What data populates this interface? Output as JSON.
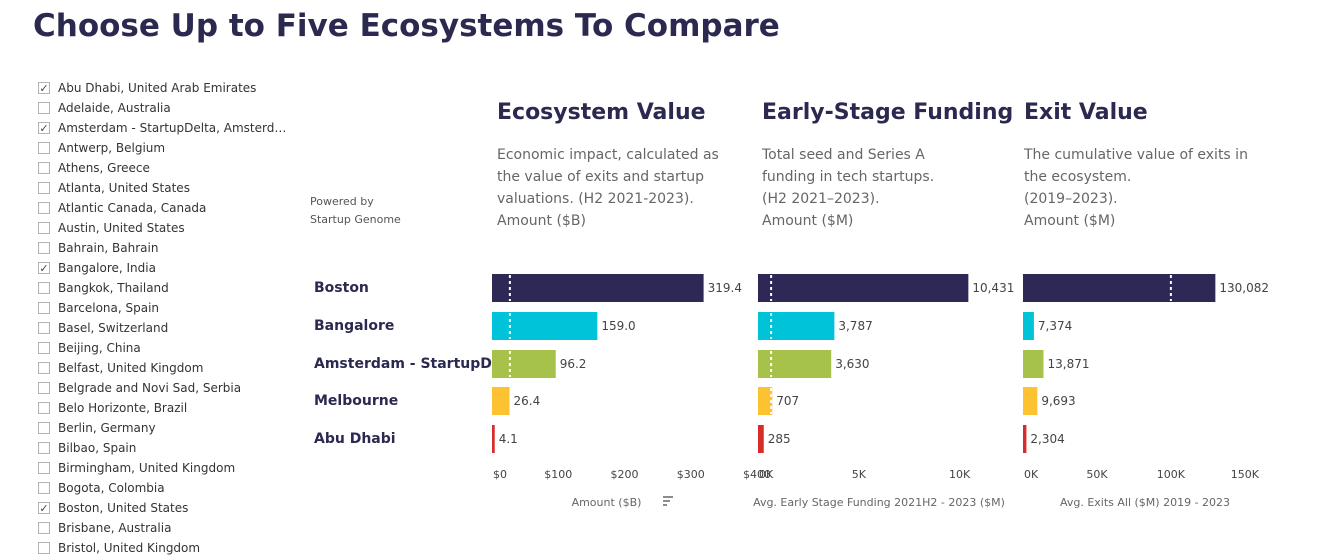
{
  "page": {
    "title": "Choose Up to Five Ecosystems To Compare",
    "powered_by": "Powered by",
    "powered_org": "Startup Genome"
  },
  "checklist": [
    {
      "label": "Abu Dhabi, United Arab Emirates",
      "checked": true
    },
    {
      "label": "Adelaide, Australia",
      "checked": false
    },
    {
      "label": "Amsterdam - StartupDelta, Amsterda...",
      "checked": true
    },
    {
      "label": "Antwerp, Belgium",
      "checked": false
    },
    {
      "label": "Athens, Greece",
      "checked": false
    },
    {
      "label": "Atlanta, United States",
      "checked": false
    },
    {
      "label": "Atlantic Canada, Canada",
      "checked": false
    },
    {
      "label": "Austin, United States",
      "checked": false
    },
    {
      "label": "Bahrain, Bahrain",
      "checked": false
    },
    {
      "label": "Bangalore, India",
      "checked": true
    },
    {
      "label": "Bangkok, Thailand",
      "checked": false
    },
    {
      "label": "Barcelona, Spain",
      "checked": false
    },
    {
      "label": "Basel, Switzerland",
      "checked": false
    },
    {
      "label": "Beijing, China",
      "checked": false
    },
    {
      "label": "Belfast, United Kingdom",
      "checked": false
    },
    {
      "label": "Belgrade and Novi Sad, Serbia",
      "checked": false
    },
    {
      "label": "Belo Horizonte, Brazil",
      "checked": false
    },
    {
      "label": "Berlin, Germany",
      "checked": false
    },
    {
      "label": "Bilbao, Spain",
      "checked": false
    },
    {
      "label": "Birmingham, United Kingdom",
      "checked": false
    },
    {
      "label": "Bogota, Colombia",
      "checked": false
    },
    {
      "label": "Boston, United States",
      "checked": true
    },
    {
      "label": "Brisbane, Australia",
      "checked": false
    },
    {
      "label": "Bristol, United Kingdom",
      "checked": false
    }
  ],
  "chart_data": {
    "type": "bar",
    "orientation": "horizontal",
    "categories": [
      "Boston",
      "Bangalore",
      "Amsterdam - StartupDe..",
      "Melbourne",
      "Abu Dhabi"
    ],
    "colors": [
      "#2e2856",
      "#00c2d8",
      "#a6c24a",
      "#fdc231",
      "#d62c2c"
    ],
    "panels": [
      {
        "title": "Ecosystem Value",
        "description": [
          "Economic impact, calculated as",
          "the value of exits and startup",
          "valuations. (H2 2021-2023).",
          "Amount ($B)"
        ],
        "xlabel": "Amount ($B)",
        "values": [
          319.4,
          159.0,
          96.2,
          26.4,
          4.1
        ],
        "value_labels": [
          "319.4",
          "159.0",
          "96.2",
          "26.4",
          "4.1"
        ],
        "xlim": [
          0,
          400
        ],
        "ticks": [
          0,
          100,
          200,
          300,
          400
        ],
        "tick_labels": [
          "$0",
          "$100",
          "$200",
          "$300",
          "$400"
        ],
        "reference_value": 27
      },
      {
        "title": "Early-Stage Funding",
        "description": [
          "Total seed and Series A",
          "funding in tech startups.",
          "(H2 2021–2023).",
          "Amount ($M)"
        ],
        "xlabel": "Avg. Early Stage Funding 2021H2 - 2023 ($M)",
        "values": [
          10431,
          3787,
          3630,
          707,
          285
        ],
        "value_labels": [
          "10,431",
          "3,787",
          "3,630",
          "707",
          "285"
        ],
        "xlim": [
          0,
          12000
        ],
        "ticks": [
          0,
          5000,
          10000
        ],
        "tick_labels": [
          "0K",
          "5K",
          "10K"
        ],
        "reference_value": 650
      },
      {
        "title": "Exit Value",
        "description": [
          "The cumulative value of exits in",
          "the ecosystem.",
          "(2019–2023).",
          "Amount ($M)"
        ],
        "xlabel": "Avg. Exits All ($M) 2019 - 2023",
        "values": [
          130082,
          7374,
          13871,
          9693,
          2304
        ],
        "value_labels": [
          "130,082",
          "7,374",
          "13,871",
          "9,693",
          "2,304"
        ],
        "xlim": [
          0,
          165000
        ],
        "ticks": [
          0,
          50000,
          100000,
          150000
        ],
        "tick_labels": [
          "0K",
          "50K",
          "100K",
          "150K"
        ],
        "reference_value": 100000
      }
    ]
  }
}
